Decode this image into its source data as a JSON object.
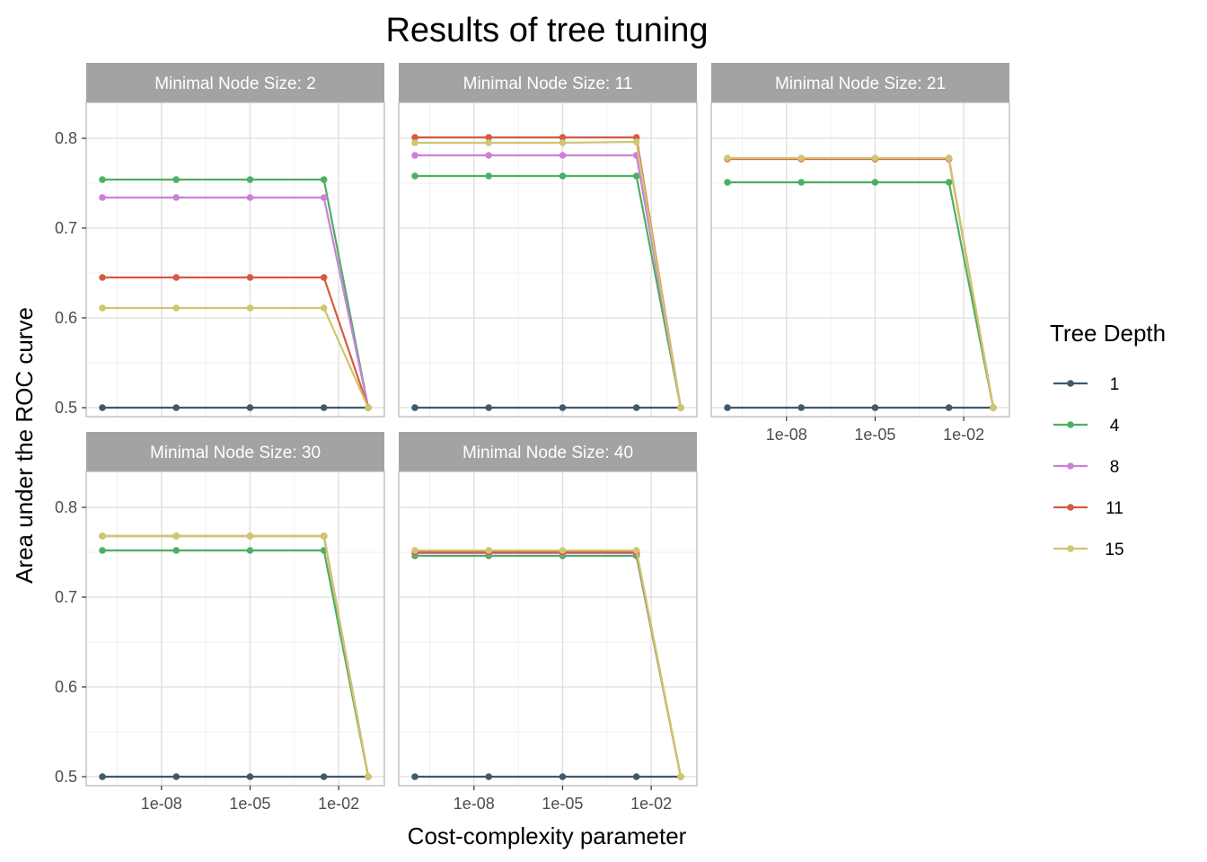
{
  "chart_data": {
    "type": "line",
    "title": "Results of tree tuning",
    "xlabel": "Cost-complexity parameter",
    "ylabel": "Area under the ROC curve",
    "x_scale": "log10",
    "x_ticks": [
      1e-08,
      1e-05,
      0.01
    ],
    "x_tick_labels": [
      "1e-08",
      "1e-05",
      "1e-02"
    ],
    "xlim": [
      1e-10,
      0.1
    ],
    "y_ticks": [
      0.5,
      0.6,
      0.7,
      0.8
    ],
    "y_tick_labels": [
      "0.5",
      "0.6",
      "0.7",
      "0.8"
    ],
    "ylim": [
      0.49,
      0.84
    ],
    "grid": true,
    "legend": {
      "title": "Tree Depth",
      "placement": "right",
      "entries": [
        {
          "label": "1",
          "color": "#3E5A6B"
        },
        {
          "label": "4",
          "color": "#4CAF64"
        },
        {
          "label": "8",
          "color": "#CD7FDB"
        },
        {
          "label": "11",
          "color": "#D55B43"
        },
        {
          "label": "15",
          "color": "#CFC66E"
        }
      ]
    },
    "x": [
      1e-10,
      3.16e-08,
      1e-05,
      0.00316,
      0.1
    ],
    "panels": [
      {
        "strip": "Minimal Node Size: 2",
        "series": [
          {
            "name": "1",
            "values": [
              0.5,
              0.5,
              0.5,
              0.5,
              0.5
            ]
          },
          {
            "name": "4",
            "values": [
              0.754,
              0.754,
              0.754,
              0.754,
              0.5
            ]
          },
          {
            "name": "8",
            "values": [
              0.734,
              0.734,
              0.734,
              0.734,
              0.5
            ]
          },
          {
            "name": "11",
            "values": [
              0.645,
              0.645,
              0.645,
              0.645,
              0.5
            ]
          },
          {
            "name": "15",
            "values": [
              0.611,
              0.611,
              0.611,
              0.611,
              0.5
            ]
          }
        ]
      },
      {
        "strip": "Minimal Node Size: 11",
        "series": [
          {
            "name": "1",
            "values": [
              0.5,
              0.5,
              0.5,
              0.5,
              0.5
            ]
          },
          {
            "name": "4",
            "values": [
              0.758,
              0.758,
              0.758,
              0.758,
              0.5
            ]
          },
          {
            "name": "8",
            "values": [
              0.781,
              0.781,
              0.781,
              0.781,
              0.5
            ]
          },
          {
            "name": "11",
            "values": [
              0.801,
              0.801,
              0.801,
              0.801,
              0.5
            ]
          },
          {
            "name": "15",
            "values": [
              0.795,
              0.795,
              0.795,
              0.796,
              0.5
            ]
          }
        ]
      },
      {
        "strip": "Minimal Node Size: 21",
        "series": [
          {
            "name": "1",
            "values": [
              0.5,
              0.5,
              0.5,
              0.5,
              0.5
            ]
          },
          {
            "name": "4",
            "values": [
              0.751,
              0.751,
              0.751,
              0.751,
              0.5
            ]
          },
          {
            "name": "8",
            "values": [
              0.777,
              0.777,
              0.777,
              0.777,
              0.5
            ]
          },
          {
            "name": "11",
            "values": [
              0.777,
              0.777,
              0.777,
              0.777,
              0.5
            ]
          },
          {
            "name": "15",
            "values": [
              0.778,
              0.778,
              0.778,
              0.778,
              0.5
            ]
          }
        ]
      },
      {
        "strip": "Minimal Node Size: 30",
        "series": [
          {
            "name": "1",
            "values": [
              0.5,
              0.5,
              0.5,
              0.5,
              0.5
            ]
          },
          {
            "name": "4",
            "values": [
              0.752,
              0.752,
              0.752,
              0.752,
              0.5
            ]
          },
          {
            "name": "8",
            "values": [
              0.768,
              0.768,
              0.768,
              0.768,
              0.5
            ]
          },
          {
            "name": "11",
            "values": [
              0.768,
              0.768,
              0.768,
              0.768,
              0.5
            ]
          },
          {
            "name": "15",
            "values": [
              0.768,
              0.768,
              0.768,
              0.768,
              0.5
            ]
          }
        ]
      },
      {
        "strip": "Minimal Node Size: 40",
        "series": [
          {
            "name": "1",
            "values": [
              0.5,
              0.5,
              0.5,
              0.5,
              0.5
            ]
          },
          {
            "name": "4",
            "values": [
              0.746,
              0.746,
              0.746,
              0.746,
              0.5
            ]
          },
          {
            "name": "8",
            "values": [
              0.749,
              0.749,
              0.749,
              0.749,
              0.5
            ]
          },
          {
            "name": "11",
            "values": [
              0.75,
              0.75,
              0.75,
              0.75,
              0.5
            ]
          },
          {
            "name": "15",
            "values": [
              0.752,
              0.752,
              0.752,
              0.752,
              0.5
            ]
          }
        ]
      }
    ]
  }
}
